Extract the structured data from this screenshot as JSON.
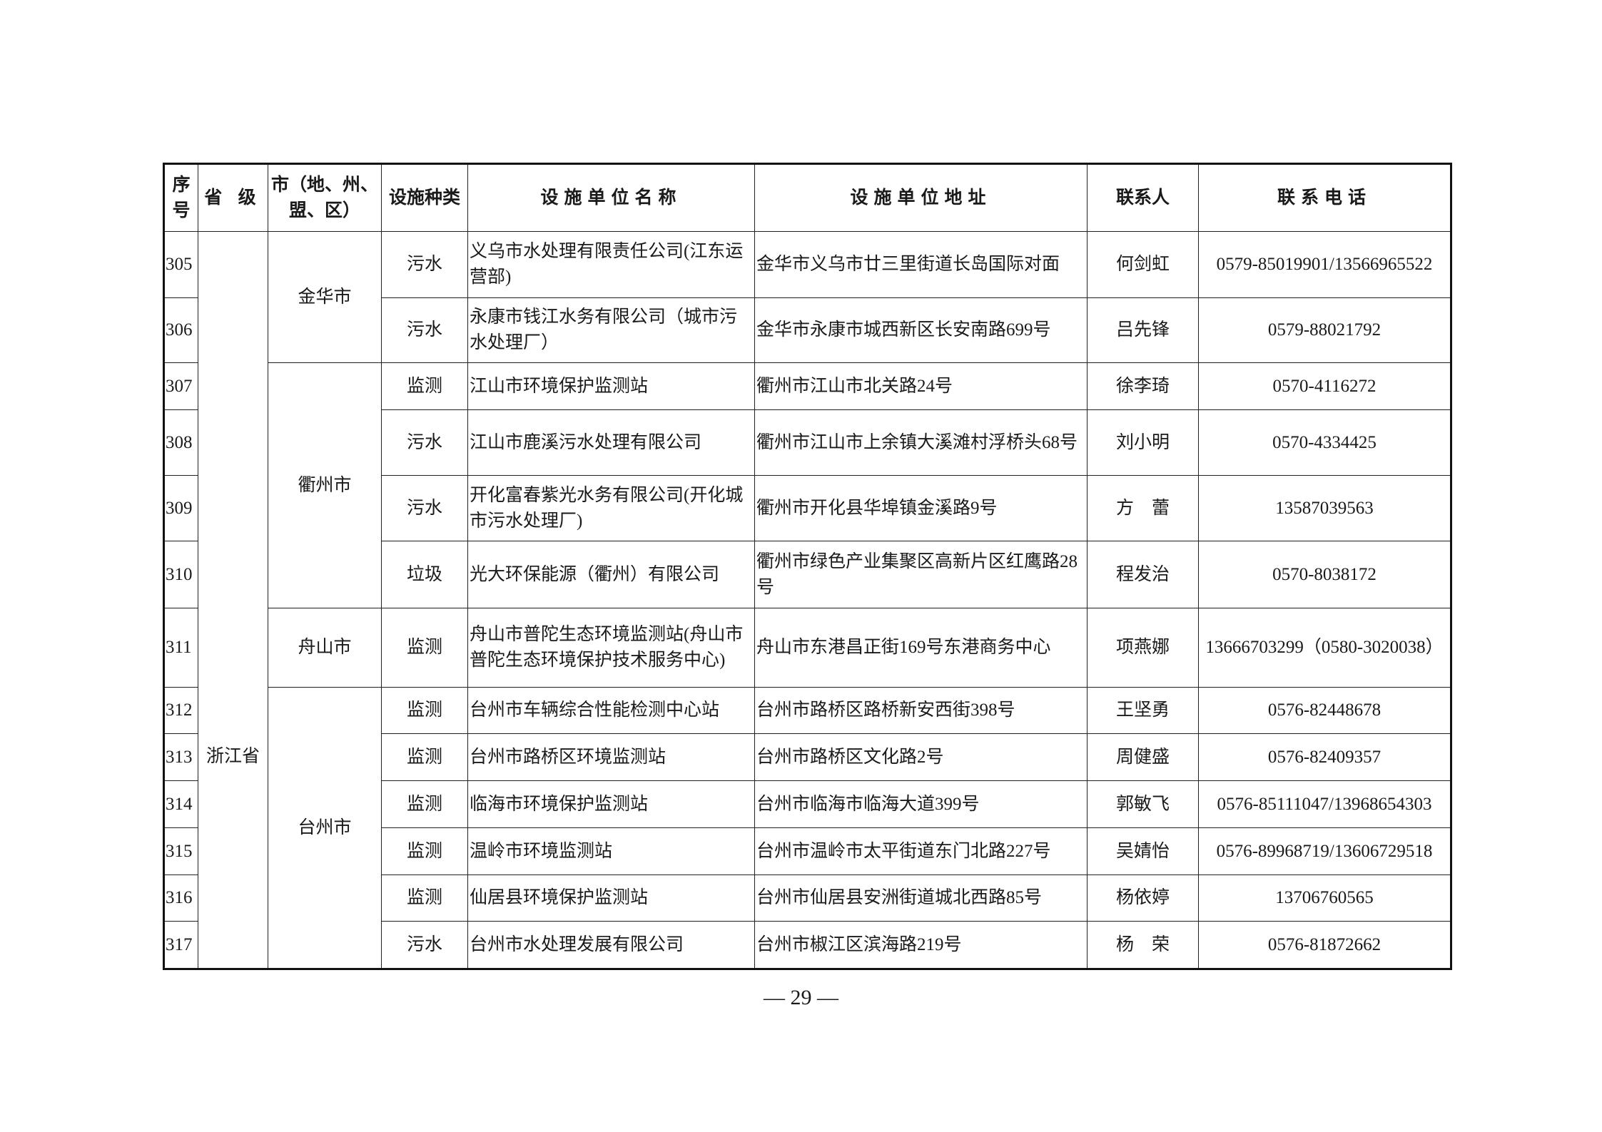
{
  "headers": {
    "seq": "序号",
    "province": "省 级",
    "city": "市（地、州、盟、区）",
    "type": "设施种类",
    "name": "设施单位名称",
    "address": "设施单位地址",
    "contact": "联系人",
    "phone": "联系电话"
  },
  "province": "浙江省",
  "cities": [
    {
      "name": "金华市",
      "rows": 2
    },
    {
      "name": "衢州市",
      "rows": 4
    },
    {
      "name": "舟山市",
      "rows": 1
    },
    {
      "name": "台州市",
      "rows": 6
    }
  ],
  "rows": [
    {
      "seq": "305",
      "type": "污水",
      "name": "义乌市水处理有限责任公司(江东运营部)",
      "address": "金华市义乌市廿三里街道长岛国际对面",
      "contact": "何剑虹",
      "phone": "0579-85019901/13566965522"
    },
    {
      "seq": "306",
      "type": "污水",
      "name": "永康市钱江水务有限公司（城市污水处理厂）",
      "address": "金华市永康市城西新区长安南路699号",
      "contact": "吕先锋",
      "phone": "0579-88021792"
    },
    {
      "seq": "307",
      "type": "监测",
      "name": "江山市环境保护监测站",
      "address": "衢州市江山市北关路24号",
      "contact": "徐李琦",
      "phone": "0570-4116272"
    },
    {
      "seq": "308",
      "type": "污水",
      "name": "江山市鹿溪污水处理有限公司",
      "address": "衢州市江山市上余镇大溪滩村浮桥头68号",
      "contact": "刘小明",
      "phone": "0570-4334425"
    },
    {
      "seq": "309",
      "type": "污水",
      "name": "开化富春紫光水务有限公司(开化城市污水处理厂)",
      "address": "衢州市开化县华埠镇金溪路9号",
      "contact": "方　蕾",
      "phone": "13587039563"
    },
    {
      "seq": "310",
      "type": "垃圾",
      "name": "光大环保能源（衢州）有限公司",
      "address": "衢州市绿色产业集聚区高新片区红鹰路28号",
      "contact": "程发治",
      "phone": "0570-8038172"
    },
    {
      "seq": "311",
      "type": "监测",
      "name": "舟山市普陀生态环境监测站(舟山市普陀生态环境保护技术服务中心)",
      "address": "舟山市东港昌正街169号东港商务中心",
      "contact": "项燕娜",
      "phone": "13666703299（0580-3020038）"
    },
    {
      "seq": "312",
      "type": "监测",
      "name": "台州市车辆综合性能检测中心站",
      "address": "台州市路桥区路桥新安西街398号",
      "contact": "王坚勇",
      "phone": "0576-82448678"
    },
    {
      "seq": "313",
      "type": "监测",
      "name": "台州市路桥区环境监测站",
      "address": "台州市路桥区文化路2号",
      "contact": "周健盛",
      "phone": "0576-82409357"
    },
    {
      "seq": "314",
      "type": "监测",
      "name": "临海市环境保护监测站",
      "address": "台州市临海市临海大道399号",
      "contact": "郭敏飞",
      "phone": "0576-85111047/13968654303"
    },
    {
      "seq": "315",
      "type": "监测",
      "name": "温岭市环境监测站",
      "address": "台州市温岭市太平街道东门北路227号",
      "contact": "吴婧怡",
      "phone": "0576-89968719/13606729518"
    },
    {
      "seq": "316",
      "type": "监测",
      "name": "仙居县环境保护监测站",
      "address": "台州市仙居县安洲街道城北西路85号",
      "contact": "杨依婷",
      "phone": "13706760565"
    },
    {
      "seq": "317",
      "type": "污水",
      "name": "台州市水处理发展有限公司",
      "address": "台州市椒江区滨海路219号",
      "contact": "杨　荣",
      "phone": "0576-81872662"
    }
  ],
  "page_number": "— 29 —"
}
